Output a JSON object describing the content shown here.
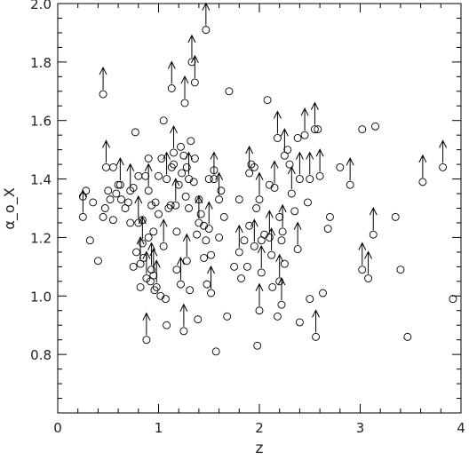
{
  "chart_data": {
    "type": "scatter",
    "xlabel": "z",
    "ylabel": "α_o_X",
    "xlim": [
      0,
      4
    ],
    "ylim": [
      0.6,
      2.0
    ],
    "xticks": [
      0,
      1,
      2,
      3,
      4
    ],
    "yticks": [
      0.8,
      {
        "value": 1,
        "label": "1.0"
      },
      1.2,
      1.4,
      1.6,
      1.8,
      {
        "value": 2,
        "label": "2.0"
      }
    ],
    "xminor": [
      0.2,
      0.4,
      0.6,
      0.8,
      1.2,
      1.4,
      1.6,
      1.8,
      2.2,
      2.4,
      2.6,
      2.8,
      3.2,
      3.4,
      3.6,
      3.8
    ],
    "yminor": [
      0.65,
      0.7,
      0.75,
      0.85,
      0.9,
      0.95,
      1.05,
      1.1,
      1.15,
      1.25,
      1.3,
      1.35,
      1.45,
      1.5,
      1.55,
      1.65,
      1.7,
      1.75,
      1.85,
      1.9,
      1.95
    ],
    "detections": {
      "x": [
        0.25,
        0.28,
        0.32,
        0.35,
        0.4,
        0.45,
        0.47,
        0.5,
        0.52,
        0.55,
        0.55,
        0.58,
        0.6,
        0.63,
        0.67,
        0.7,
        0.72,
        0.75,
        0.75,
        0.77,
        0.78,
        0.8,
        0.82,
        0.84,
        0.85,
        0.87,
        0.9,
        0.9,
        0.92,
        0.93,
        0.95,
        0.96,
        0.97,
        1.0,
        1.0,
        1.02,
        1.03,
        1.05,
        1.07,
        1.08,
        1.1,
        1.12,
        1.13,
        1.15,
        1.18,
        1.18,
        1.2,
        1.22,
        1.23,
        1.25,
        1.27,
        1.28,
        1.3,
        1.31,
        1.32,
        1.35,
        1.36,
        1.38,
        1.39,
        1.4,
        1.42,
        1.45,
        1.45,
        1.47,
        1.48,
        1.5,
        1.52,
        1.55,
        1.57,
        1.6,
        1.62,
        1.65,
        1.68,
        1.7,
        1.75,
        1.8,
        1.82,
        1.85,
        1.88,
        1.9,
        1.92,
        1.95,
        1.97,
        1.98,
        2.02,
        2.05,
        2.08,
        2.1,
        2.13,
        2.18,
        2.2,
        2.22,
        2.25,
        2.28,
        2.3,
        2.35,
        2.38,
        2.4,
        2.48,
        2.5,
        2.58,
        2.63,
        2.68,
        2.7,
        2.8,
        3.02,
        3.15,
        3.35,
        3.4,
        3.47,
        3.92
      ],
      "y": [
        1.34,
        1.36,
        1.19,
        1.32,
        1.12,
        1.27,
        1.3,
        1.36,
        1.33,
        1.26,
        1.44,
        1.35,
        1.38,
        1.33,
        1.3,
        1.32,
        1.25,
        1.37,
        1.1,
        1.56,
        1.15,
        1.41,
        1.03,
        1.26,
        1.13,
        1.41,
        1.47,
        1.2,
        1.05,
        1.31,
        1.22,
        1.02,
        1.32,
        1.41,
        1.28,
        1.0,
        1.47,
        1.6,
        0.99,
        0.9,
        1.3,
        1.31,
        1.44,
        1.45,
        1.22,
        1.09,
        1.38,
        1.51,
        1.42,
        1.48,
        1.34,
        1.44,
        1.3,
        1.02,
        1.53,
        1.39,
        1.47,
        1.21,
        0.92,
        1.33,
        1.28,
        1.24,
        1.13,
        1.19,
        1.04,
        1.4,
        1.14,
        1.43,
        0.81,
        1.2,
        1.36,
        1.27,
        0.93,
        1.7,
        1.1,
        1.33,
        1.06,
        1.19,
        1.1,
        1.24,
        1.45,
        1.44,
        1.3,
        0.83,
        1.19,
        1.21,
        1.67,
        1.38,
        1.03,
        0.93,
        1.27,
        1.19,
        1.11,
        1.5,
        1.45,
        1.29,
        1.54,
        0.91,
        1.32,
        0.99,
        1.57,
        1.01,
        1.23,
        1.27,
        1.44,
        1.57,
        1.58,
        1.27,
        1.09,
        0.86,
        0.99
      ]
    },
    "limits": {
      "x": [
        0.25,
        0.45,
        0.48,
        0.62,
        0.72,
        0.8,
        0.82,
        0.84,
        0.88,
        0.9,
        0.93,
        0.95,
        0.98,
        0.88,
        1.05,
        1.08,
        1.13,
        1.15,
        1.17,
        1.22,
        1.25,
        1.26,
        1.3,
        1.33,
        1.36,
        1.28,
        1.4,
        1.47,
        1.5,
        1.52,
        1.55,
        1.6,
        1.8,
        1.9,
        1.95,
        2.0,
        2.0,
        2.02,
        2.1,
        2.12,
        2.15,
        2.18,
        2.2,
        2.22,
        2.23,
        2.25,
        2.32,
        2.38,
        2.4,
        2.45,
        2.5,
        2.55,
        2.56,
        2.6,
        2.9,
        3.02,
        3.08,
        3.13,
        3.62,
        3.82
      ],
      "y": [
        1.27,
        1.69,
        1.44,
        1.38,
        1.36,
        1.25,
        1.11,
        1.18,
        1.06,
        1.36,
        1.09,
        1.07,
        1.03,
        0.85,
        1.17,
        1.4,
        1.71,
        1.49,
        1.31,
        1.04,
        0.88,
        1.66,
        1.4,
        1.8,
        1.73,
        1.12,
        1.25,
        1.91,
        1.23,
        1.01,
        1.4,
        1.33,
        1.15,
        1.42,
        1.17,
        1.33,
        0.95,
        1.08,
        1.2,
        1.14,
        1.37,
        1.54,
        1.05,
        0.97,
        1.22,
        1.48,
        1.35,
        1.16,
        1.4,
        1.55,
        1.4,
        1.57,
        0.86,
        1.41,
        1.38,
        1.09,
        1.06,
        1.21,
        1.39,
        1.44
      ]
    }
  }
}
